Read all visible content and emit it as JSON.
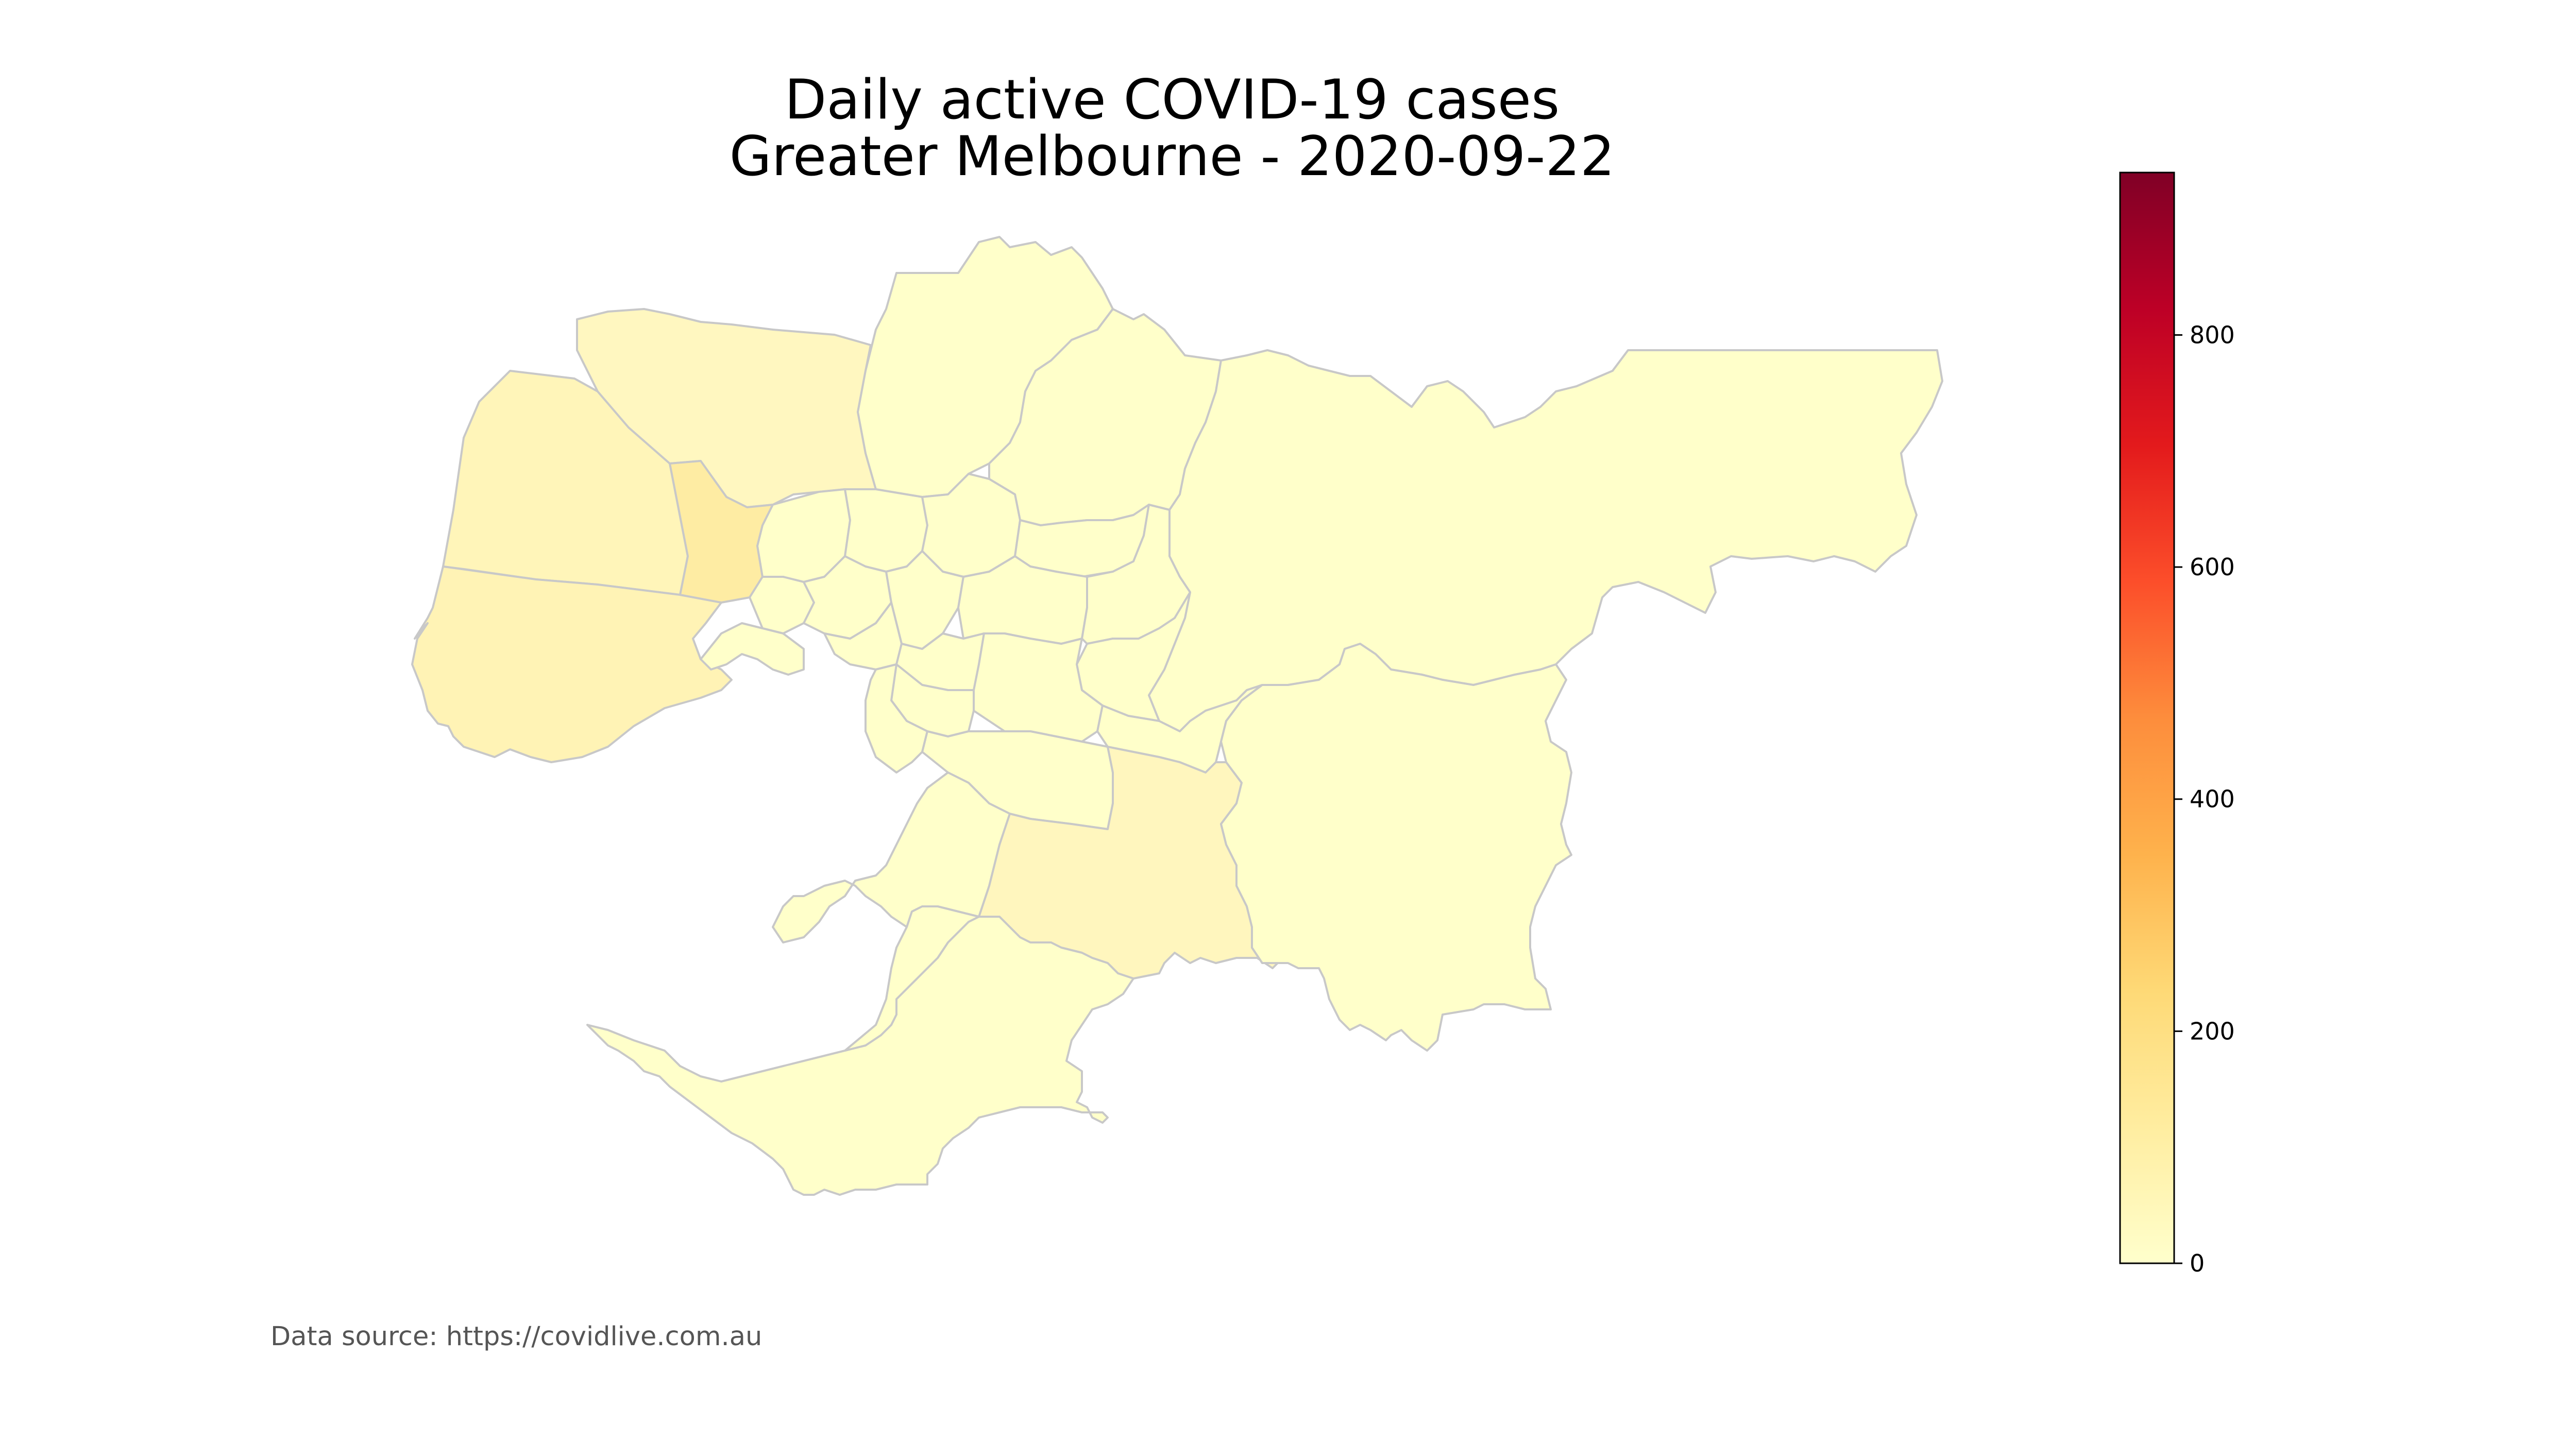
{
  "title": {
    "line1": "Daily active COVID-19 cases",
    "line2": "Greater Melbourne - 2020-09-22"
  },
  "source_note": "Data source: https://covidlive.com.au",
  "colorbar": {
    "colormap": "YlOrRd",
    "min": 0,
    "max": 940,
    "ticks": [
      "0",
      "200",
      "400",
      "600",
      "800"
    ],
    "stops": [
      "#ffffcc",
      "#ffeda0",
      "#fed976",
      "#feb24c",
      "#fd8d3c",
      "#fc4e2a",
      "#e31a1c",
      "#bd0026",
      "#800026"
    ]
  },
  "map": {
    "border_color": "#c8c8c8",
    "fill_low": "#ffffcc",
    "fill_mid": "#fff4b8",
    "fill_high": "#fee9a0"
  }
}
